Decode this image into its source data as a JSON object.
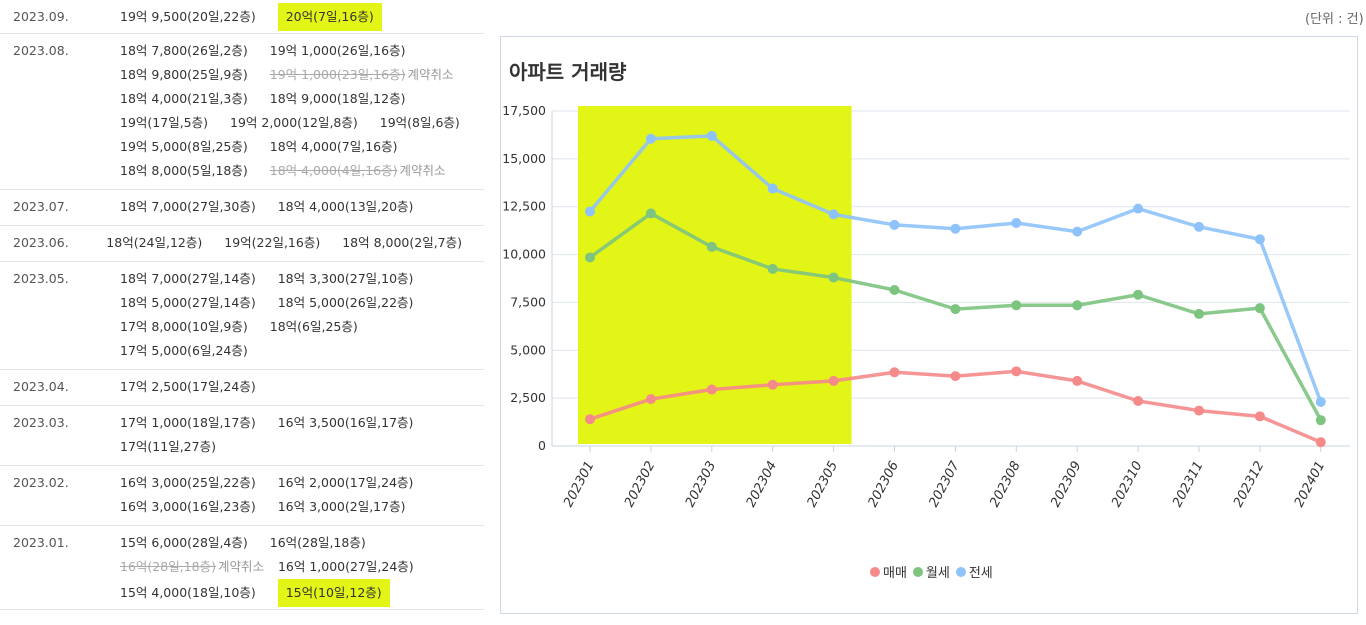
{
  "unit_label": "(단위 : 건)",
  "transactions": [
    {
      "date": "2023.09.",
      "lines": [
        [
          {
            "t": "19억 9,500(20일,22층)"
          },
          {
            "t": "20억(7일,16층)",
            "hl": true
          }
        ]
      ]
    },
    {
      "date": "2023.08.",
      "lines": [
        [
          {
            "t": "18억 7,800(26일,2층)"
          },
          {
            "t": "19억 1,000(26일,16층)"
          }
        ],
        [
          {
            "t": "18억 9,800(25일,9층)"
          },
          {
            "t": "19억 1,000(23일,16층)",
            "cancelled": true,
            "note": "계약취소"
          }
        ],
        [
          {
            "t": "18억 4,000(21일,3층)"
          },
          {
            "t": "18억 9,000(18일,12층)"
          }
        ],
        [
          {
            "t": "19억(17일,5층)"
          },
          {
            "t": "19억 2,000(12일,8층)"
          },
          {
            "t": "19억(8일,6층)"
          }
        ],
        [
          {
            "t": "19억 5,000(8일,25층)"
          },
          {
            "t": "18억 4,000(7일,16층)"
          }
        ],
        [
          {
            "t": "18억 8,000(5일,18층)"
          },
          {
            "t": "18억 4,000(4일,16층)",
            "cancelled": true,
            "note": "계약취소"
          }
        ]
      ]
    },
    {
      "date": "2023.07.",
      "lines": [
        [
          {
            "t": "18억 7,000(27일,30층)"
          },
          {
            "t": "18억 4,000(13일,20층)"
          }
        ]
      ]
    },
    {
      "date": "2023.06.",
      "lines": [
        [
          {
            "t": "18억(24일,12층)"
          },
          {
            "t": "19억(22일,16층)"
          },
          {
            "t": "18억 8,000(2일,7층)"
          }
        ]
      ]
    },
    {
      "date": "2023.05.",
      "lines": [
        [
          {
            "t": "18억 7,000(27일,14층)"
          },
          {
            "t": "18억 3,300(27일,10층)"
          }
        ],
        [
          {
            "t": "18억 5,000(27일,14층)"
          },
          {
            "t": "18억 5,000(26일,22층)"
          }
        ],
        [
          {
            "t": "17억 8,000(10일,9층)"
          },
          {
            "t": "18억(6일,25층)"
          }
        ],
        [
          {
            "t": "17억 5,000(6일,24층)"
          }
        ]
      ]
    },
    {
      "date": "2023.04.",
      "lines": [
        [
          {
            "t": "17억 2,500(17일,24층)"
          }
        ]
      ]
    },
    {
      "date": "2023.03.",
      "lines": [
        [
          {
            "t": "17억 1,000(18일,17층)"
          },
          {
            "t": "16억 3,500(16일,17층)"
          }
        ],
        [
          {
            "t": "17억(11일,27층)"
          }
        ]
      ]
    },
    {
      "date": "2023.02.",
      "lines": [
        [
          {
            "t": "16억 3,000(25일,22층)"
          },
          {
            "t": "16억 2,000(17일,24층)"
          }
        ],
        [
          {
            "t": "16억 3,000(16일,23층)"
          },
          {
            "t": "16억 3,000(2일,17층)"
          }
        ]
      ]
    },
    {
      "date": "2023.01.",
      "lines": [
        [
          {
            "t": "15억 6,000(28일,4층)"
          },
          {
            "t": "16억(28일,18층)"
          }
        ],
        [
          {
            "t": "16억(28일,18층)",
            "cancelled": true,
            "note": "계약취소"
          },
          {
            "t": "16억 1,000(27일,24층)"
          }
        ],
        [
          {
            "t": "15억 4,000(18일,10층)"
          },
          {
            "t": "15억(10일,12층)",
            "hl": true
          }
        ]
      ]
    }
  ],
  "chart_data": {
    "type": "line",
    "title": "아파트 거래량",
    "categories": [
      "202301",
      "202302",
      "202303",
      "202304",
      "202305",
      "202306",
      "202307",
      "202308",
      "202309",
      "202310",
      "202311",
      "202312",
      "202401"
    ],
    "ylim": [
      0,
      17500
    ],
    "yticks": [
      "0",
      "2,500",
      "5,000",
      "7,500",
      "10,000",
      "12,500",
      "15,000",
      "17,500"
    ],
    "ytick_values": [
      0,
      2500,
      5000,
      7500,
      10000,
      12500,
      15000,
      17500
    ],
    "series": [
      {
        "name": "매매",
        "color": "#f58a8a",
        "values": [
          1400,
          2450,
          2950,
          3200,
          3400,
          3850,
          3650,
          3900,
          3400,
          2350,
          1850,
          1550,
          200
        ]
      },
      {
        "name": "월세",
        "color": "#7cc47f",
        "values": [
          9850,
          12150,
          10400,
          9250,
          8800,
          8150,
          7150,
          7350,
          7350,
          7900,
          6900,
          7200,
          1350
        ]
      },
      {
        "name": "전세",
        "color": "#8ec2fb",
        "values": [
          12250,
          16050,
          16200,
          13450,
          12100,
          11550,
          11350,
          11650,
          11200,
          12400,
          11450,
          10800,
          2300
        ]
      }
    ],
    "highlight_range": [
      "202301",
      "202305"
    ],
    "highlight_color": "#e3f516",
    "grid": "horizontal",
    "legend_position": "bottom"
  }
}
